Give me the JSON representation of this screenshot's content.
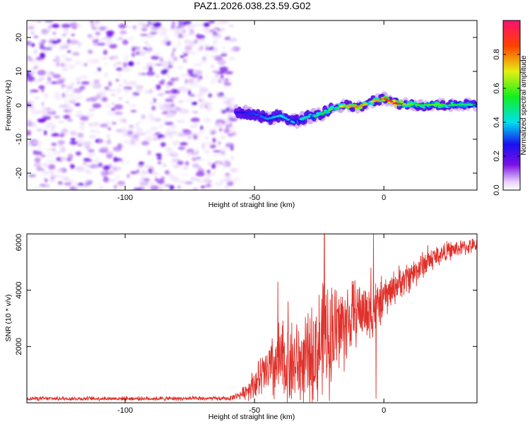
{
  "title": "PAZ1.2026.038.23.59.G02",
  "chart_data": [
    {
      "type": "heatmap",
      "xlabel": "Height of straight line (km)",
      "ylabel": "Frequency (Hz)",
      "xlim": [
        -138,
        36
      ],
      "ylim": [
        -25,
        25
      ],
      "xticks": [
        -100,
        -50,
        0
      ],
      "yticks": [
        -20,
        -10,
        0,
        10,
        20
      ],
      "colorbar": {
        "label": "Normalized spectral amplitude",
        "range": [
          0,
          1
        ],
        "ticks": [
          "0.0",
          "0.2",
          "0.4",
          "0.6",
          "0.8"
        ]
      },
      "noise_region": {
        "x": [
          -138,
          -57
        ],
        "y": [
          -25,
          25
        ],
        "amplitude": [
          0.02,
          0.18
        ]
      },
      "signal_track": [
        {
          "x": -57,
          "freq": -2.0,
          "amp": 0.25
        },
        {
          "x": -50,
          "freq": -2.5,
          "amp": 0.3
        },
        {
          "x": -45,
          "freq": -4.0,
          "amp": 0.35
        },
        {
          "x": -40,
          "freq": -3.0,
          "amp": 0.4
        },
        {
          "x": -35,
          "freq": -5.0,
          "amp": 0.38
        },
        {
          "x": -30,
          "freq": -3.5,
          "amp": 0.45
        },
        {
          "x": -25,
          "freq": -3.0,
          "amp": 0.5
        },
        {
          "x": -20,
          "freq": -1.0,
          "amp": 0.6
        },
        {
          "x": -15,
          "freq": 0.0,
          "amp": 0.75
        },
        {
          "x": -10,
          "freq": -0.5,
          "amp": 0.8
        },
        {
          "x": -5,
          "freq": 1.0,
          "amp": 0.7
        },
        {
          "x": 0,
          "freq": 2.0,
          "amp": 0.85
        },
        {
          "x": 5,
          "freq": 0.5,
          "amp": 0.95
        },
        {
          "x": 10,
          "freq": 0.3,
          "amp": 0.6
        },
        {
          "x": 15,
          "freq": 0.0,
          "amp": 0.55
        },
        {
          "x": 20,
          "freq": 0.2,
          "amp": 0.6
        },
        {
          "x": 25,
          "freq": 0.0,
          "amp": 0.55
        },
        {
          "x": 30,
          "freq": 0.3,
          "amp": 0.5
        },
        {
          "x": 36,
          "freq": 0.0,
          "amp": 0.45
        }
      ]
    },
    {
      "type": "line",
      "xlabel": "Height of straight line (km)",
      "ylabel": "SNR (10 * v/v)",
      "xlim": [
        -138,
        36
      ],
      "ylim": [
        0,
        6000
      ],
      "xticks": [
        -100,
        -50,
        0
      ],
      "yticks": [
        2000,
        4000,
        6000
      ],
      "series": [
        {
          "color": "#e0302a",
          "envelope": [
            {
              "x": -138,
              "y": 150,
              "spread": 90
            },
            {
              "x": -60,
              "y": 150,
              "spread": 90
            },
            {
              "x": -55,
              "y": 300,
              "spread": 200
            },
            {
              "x": -50,
              "y": 700,
              "spread": 700
            },
            {
              "x": -45,
              "y": 1100,
              "spread": 1200
            },
            {
              "x": -40,
              "y": 1400,
              "spread": 1900
            },
            {
              "x": -35,
              "y": 1400,
              "spread": 1900
            },
            {
              "x": -30,
              "y": 1400,
              "spread": 1900
            },
            {
              "x": -25,
              "y": 2000,
              "spread": 2500
            },
            {
              "x": -20,
              "y": 2500,
              "spread": 2400
            },
            {
              "x": -15,
              "y": 2800,
              "spread": 1900
            },
            {
              "x": -10,
              "y": 3300,
              "spread": 1300
            },
            {
              "x": -5,
              "y": 3200,
              "spread": 1300
            },
            {
              "x": 0,
              "y": 3700,
              "spread": 900
            },
            {
              "x": 5,
              "y": 4200,
              "spread": 700
            },
            {
              "x": 10,
              "y": 4500,
              "spread": 700
            },
            {
              "x": 15,
              "y": 4900,
              "spread": 600
            },
            {
              "x": 20,
              "y": 5200,
              "spread": 500
            },
            {
              "x": 25,
              "y": 5400,
              "spread": 400
            },
            {
              "x": 30,
              "y": 5500,
              "spread": 350
            },
            {
              "x": 36,
              "y": 5600,
              "spread": 300
            }
          ],
          "peaks": [
            {
              "x": -41,
              "y": 4300
            },
            {
              "x": -37,
              "y": 3600
            },
            {
              "x": -23,
              "y": 6000
            },
            {
              "x": -4,
              "y": 6000
            },
            {
              "x": -5,
              "y": 4800
            },
            {
              "x": 17,
              "y": 5600
            },
            {
              "x": -3,
              "y": 150
            }
          ]
        }
      ]
    }
  ]
}
